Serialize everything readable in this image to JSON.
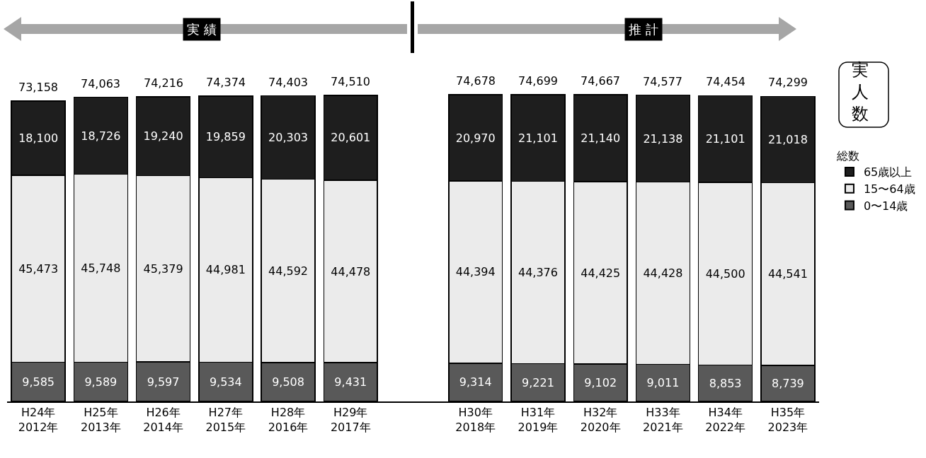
{
  "chart_data": {
    "type": "bar",
    "stacked": true,
    "legend": "right",
    "legend_title": "総数",
    "categories": [
      "H24年\n2012年",
      "H25年\n2013年",
      "H26年\n2014年",
      "H27年\n2015年",
      "H28年\n2016年",
      "H29年\n2017年",
      null,
      "H30年\n2018年",
      "H31年\n2019年",
      "H32年\n2020年",
      "H33年\n2021年",
      "H34年\n2022年",
      "H35年\n2023年"
    ],
    "series": [
      {
        "name": "0〜14歳",
        "color": "#595959",
        "values": [
          9585,
          9589,
          9597,
          9534,
          9508,
          9431,
          null,
          9314,
          9221,
          9102,
          9011,
          8853,
          8739
        ],
        "value_labels": [
          "9,585",
          "9,589",
          "9,597",
          "9,534",
          "9,508",
          "9,431",
          null,
          "9,314",
          "9,221",
          "9,102",
          "9,011",
          "8,853",
          "8,739"
        ]
      },
      {
        "name": "15〜64歳",
        "color": "#ebebeb",
        "values": [
          45473,
          45748,
          45379,
          44981,
          44592,
          44478,
          null,
          44394,
          44376,
          44425,
          44428,
          44500,
          44541
        ],
        "value_labels": [
          "45,473",
          "45,748",
          "45,379",
          "44,981",
          "44,592",
          "44,478",
          null,
          "44,394",
          "44,376",
          "44,425",
          "44,428",
          "44,500",
          "44,541"
        ]
      },
      {
        "name": "65歳以上",
        "color": "#1e1e1e",
        "values": [
          18100,
          18726,
          19240,
          19859,
          20303,
          20601,
          null,
          20970,
          21101,
          21140,
          21138,
          21101,
          21018
        ],
        "value_labels": [
          "18,100",
          "18,726",
          "19,240",
          "19,859",
          "20,303",
          "20,601",
          null,
          "20,970",
          "21,101",
          "21,140",
          "21,138",
          "21,101",
          "21,018"
        ]
      }
    ],
    "totals": [
      "73,158",
      "74,063",
      "74,216",
      "74,374",
      "74,403",
      "74,510",
      null,
      "74,678",
      "74,699",
      "74,667",
      "74,577",
      "74,454",
      "74,299"
    ],
    "annotations": [
      "実 績",
      "推 計",
      "実人数"
    ]
  }
}
